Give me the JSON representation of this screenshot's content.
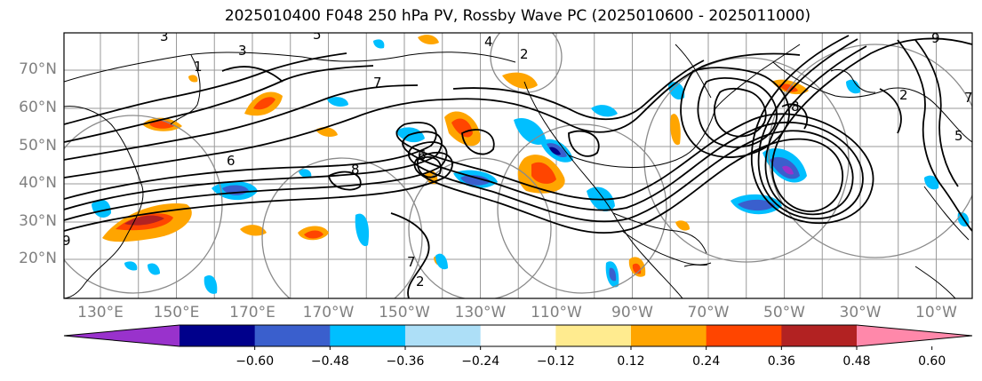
{
  "title": "2025010400 F048 250 hPa PV, Rossby Wave PC (2025010600 - 2025011000)",
  "lat_labels": [
    "70°N",
    "60°N",
    "50°N",
    "40°N",
    "30°N",
    "20°N"
  ],
  "lon_labels": [
    "130°E",
    "150°E",
    "170°E",
    "170°W",
    "150°W",
    "130°W",
    "110°W",
    "90°W",
    "70°W",
    "50°W",
    "30°W",
    "10°W"
  ],
  "colorbar": {
    "colors": [
      "#9932CC",
      "#00008B",
      "#3A5FCD",
      "#00BFFF",
      "#ADDFF7",
      "#FFFFFF",
      "#FFEB8F",
      "#FFA500",
      "#FF4500",
      "#B22222",
      "#FF88AA"
    ],
    "tick_labels": [
      "−0.60",
      "−0.48",
      "−0.36",
      "−0.24",
      "−0.12",
      "0.12",
      "0.24",
      "0.36",
      "0.48",
      "0.60"
    ]
  },
  "contour_labels": [
    "3",
    "1",
    "2",
    "5",
    "4",
    "7",
    "9",
    "8",
    "6"
  ]
}
